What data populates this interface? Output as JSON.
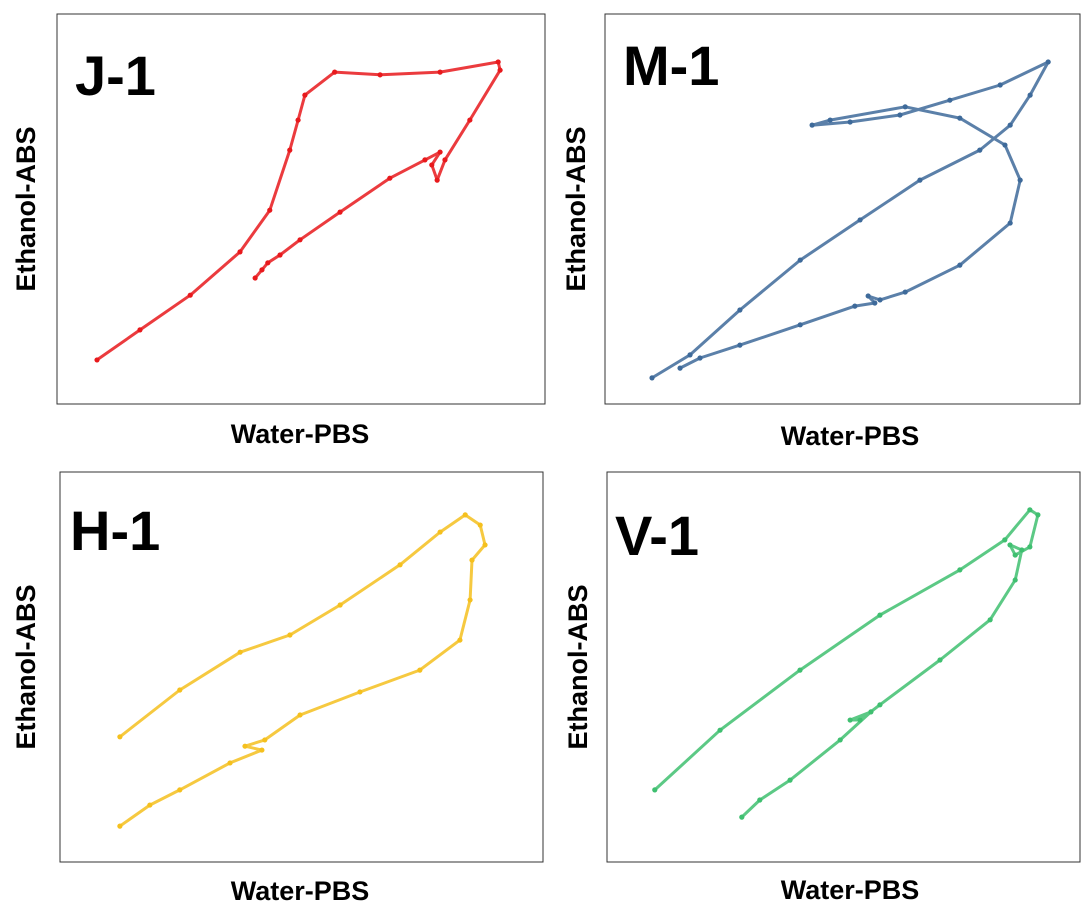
{
  "chart_data": [
    {
      "type": "scatter",
      "title": "J-1",
      "xlabel": "Water-PBS",
      "ylabel": "Ethanol-ABS",
      "color": "#e8191c",
      "xlim": [
        0,
        100
      ],
      "ylim": [
        0,
        100
      ],
      "x": [
        8.2,
        17.0,
        27.3,
        37.5,
        43.6,
        47.7,
        49.4,
        50.8,
        56.9,
        66.2,
        78.5,
        90.4,
        90.8,
        84.6,
        79.5,
        77.9,
        76.8,
        78.5,
        75.4,
        68.2,
        58.0,
        49.8,
        45.7,
        43.2,
        42.0,
        40.6
      ],
      "values": [
        11.3,
        19.0,
        27.9,
        39.0,
        49.7,
        65.1,
        72.8,
        79.2,
        85.1,
        84.4,
        85.1,
        87.7,
        85.6,
        72.8,
        62.6,
        57.4,
        61.3,
        64.6,
        62.6,
        57.9,
        49.2,
        42.1,
        38.2,
        36.2,
        34.4,
        32.3
      ]
    },
    {
      "type": "scatter",
      "title": "M-1",
      "xlabel": "Water-PBS",
      "ylabel": "Ethanol-ABS",
      "color": "#3e6a9a",
      "xlim": [
        0,
        100
      ],
      "ylim": [
        0,
        100
      ],
      "x": [
        9.9,
        17.9,
        28.4,
        41.1,
        53.7,
        66.3,
        78.9,
        85.3,
        89.5,
        93.3,
        83.2,
        72.6,
        62.1,
        51.6,
        43.6,
        47.4,
        63.2,
        74.7,
        84.2,
        87.4,
        85.3,
        74.7,
        63.2,
        57.9,
        55.4,
        56.8,
        52.6,
        41.1,
        28.4,
        20.0,
        15.8
      ],
      "values": [
        6.7,
        12.6,
        24.1,
        36.9,
        47.2,
        57.4,
        65.1,
        71.5,
        79.2,
        87.7,
        81.8,
        77.9,
        74.1,
        72.3,
        71.5,
        72.8,
        76.2,
        73.3,
        66.4,
        57.4,
        46.4,
        35.6,
        28.7,
        26.7,
        27.7,
        25.9,
        25.1,
        20.3,
        15.1,
        11.8,
        9.2
      ]
    },
    {
      "type": "scatter",
      "title": "H-1",
      "xlabel": "Water-PBS",
      "ylabel": "Ethanol-ABS",
      "color": "#f5c01e",
      "xlim": [
        0,
        100
      ],
      "ylim": [
        0,
        100
      ],
      "x": [
        12.4,
        24.8,
        37.3,
        47.6,
        58.0,
        70.4,
        78.7,
        83.9,
        87.0,
        88.0,
        85.3,
        84.9,
        82.8,
        74.5,
        62.1,
        49.7,
        42.4,
        38.3,
        41.8,
        35.2,
        24.8,
        18.6,
        12.4
      ],
      "values": [
        32.1,
        44.1,
        53.8,
        58.2,
        65.9,
        76.2,
        84.6,
        89.0,
        86.4,
        81.3,
        77.4,
        67.2,
        56.9,
        49.2,
        43.6,
        37.7,
        31.3,
        29.7,
        28.7,
        25.4,
        18.5,
        14.6,
        9.2
      ]
    },
    {
      "type": "scatter",
      "title": "V-1",
      "xlabel": "Water-PBS",
      "ylabel": "Ethanol-ABS",
      "color": "#3fbf70",
      "xlim": [
        0,
        100
      ],
      "ylim": [
        0,
        100
      ],
      "x": [
        10.1,
        23.9,
        40.8,
        57.7,
        74.6,
        84.1,
        89.4,
        91.1,
        89.4,
        86.3,
        85.2,
        87.7,
        86.3,
        81.0,
        70.4,
        57.7,
        53.5,
        51.4,
        55.8,
        49.3,
        38.7,
        32.3,
        28.5
      ],
      "values": [
        18.5,
        33.8,
        49.2,
        63.3,
        74.9,
        82.6,
        90.3,
        89.0,
        80.8,
        78.7,
        81.3,
        80.0,
        72.3,
        62.1,
        51.8,
        40.3,
        36.4,
        36.4,
        38.5,
        31.3,
        21.0,
        15.9,
        11.5
      ]
    }
  ]
}
